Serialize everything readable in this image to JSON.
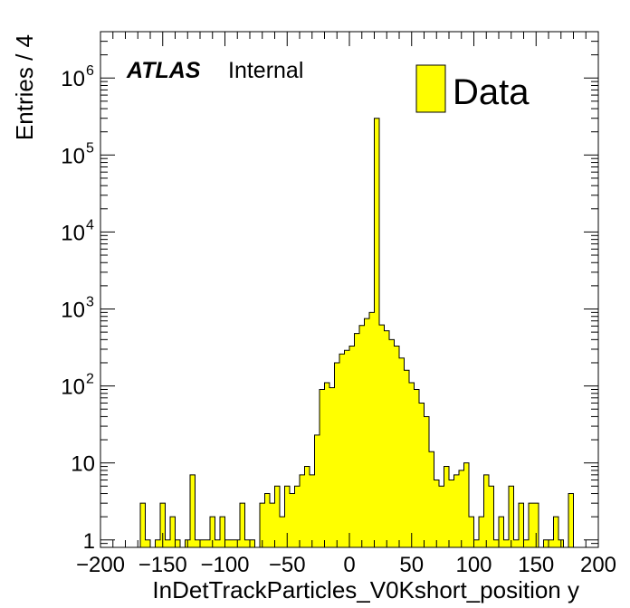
{
  "chart_data": {
    "type": "bar",
    "title": "",
    "xlabel": "InDetTrackParticles_V0Kshort_position y",
    "ylabel": "Entries / 4",
    "xlim": [
      -200,
      200
    ],
    "ylim": [
      0.8,
      4000000
    ],
    "y_scale": "log",
    "bin_width": 4,
    "x_ticks": [
      -200,
      -150,
      -100,
      -50,
      0,
      50,
      100,
      150,
      200
    ],
    "x_tick_labels": [
      "−200",
      "−150",
      "−100",
      "−50",
      "0",
      "50",
      "100",
      "150",
      "200"
    ],
    "y_ticks": [
      1,
      10,
      100,
      1000,
      10000,
      100000,
      1000000
    ],
    "y_tick_labels": [
      {
        "base": "1",
        "exp": ""
      },
      {
        "base": "10",
        "exp": ""
      },
      {
        "base": "10",
        "exp": "2"
      },
      {
        "base": "10",
        "exp": "3"
      },
      {
        "base": "10",
        "exp": "4"
      },
      {
        "base": "10",
        "exp": "5"
      },
      {
        "base": "10",
        "exp": "6"
      }
    ],
    "fill_color": "#ffff00",
    "line_color": "#000000",
    "grid": false,
    "legend_position": "top-right",
    "series": [
      {
        "name": "Data",
        "bins": [
          {
            "x0": -168,
            "y": 3
          },
          {
            "x0": -164,
            "y": 1
          },
          {
            "x0": -156,
            "y": 1
          },
          {
            "x0": -152,
            "y": 3
          },
          {
            "x0": -148,
            "y": 1
          },
          {
            "x0": -144,
            "y": 2
          },
          {
            "x0": -140,
            "y": 1
          },
          {
            "x0": -132,
            "y": 1
          },
          {
            "x0": -128,
            "y": 7
          },
          {
            "x0": -124,
            "y": 1
          },
          {
            "x0": -120,
            "y": 1
          },
          {
            "x0": -116,
            "y": 1
          },
          {
            "x0": -112,
            "y": 2
          },
          {
            "x0": -108,
            "y": 1
          },
          {
            "x0": -104,
            "y": 2
          },
          {
            "x0": -100,
            "y": 1
          },
          {
            "x0": -96,
            "y": 1
          },
          {
            "x0": -92,
            "y": 1
          },
          {
            "x0": -88,
            "y": 3
          },
          {
            "x0": -84,
            "y": 1
          },
          {
            "x0": -80,
            "y": 1
          },
          {
            "x0": -72,
            "y": 3
          },
          {
            "x0": -68,
            "y": 4
          },
          {
            "x0": -64,
            "y": 3
          },
          {
            "x0": -60,
            "y": 5
          },
          {
            "x0": -56,
            "y": 2
          },
          {
            "x0": -52,
            "y": 5
          },
          {
            "x0": -48,
            "y": 4
          },
          {
            "x0": -44,
            "y": 5
          },
          {
            "x0": -40,
            "y": 7
          },
          {
            "x0": -36,
            "y": 9
          },
          {
            "x0": -32,
            "y": 7
          },
          {
            "x0": -28,
            "y": 23
          },
          {
            "x0": -24,
            "y": 90
          },
          {
            "x0": -20,
            "y": 110
          },
          {
            "x0": -16,
            "y": 95
          },
          {
            "x0": -12,
            "y": 200
          },
          {
            "x0": -8,
            "y": 260
          },
          {
            "x0": -4,
            "y": 290
          },
          {
            "x0": 0,
            "y": 330
          },
          {
            "x0": 4,
            "y": 480
          },
          {
            "x0": 8,
            "y": 610
          },
          {
            "x0": 12,
            "y": 750
          },
          {
            "x0": 16,
            "y": 900
          },
          {
            "x0": 20,
            "y": 300000
          },
          {
            "x0": 24,
            "y": 620
          },
          {
            "x0": 28,
            "y": 520
          },
          {
            "x0": 32,
            "y": 400
          },
          {
            "x0": 36,
            "y": 330
          },
          {
            "x0": 40,
            "y": 230
          },
          {
            "x0": 44,
            "y": 160
          },
          {
            "x0": 48,
            "y": 110
          },
          {
            "x0": 52,
            "y": 90
          },
          {
            "x0": 56,
            "y": 60
          },
          {
            "x0": 60,
            "y": 40
          },
          {
            "x0": 64,
            "y": 14
          },
          {
            "x0": 68,
            "y": 6
          },
          {
            "x0": 72,
            "y": 5
          },
          {
            "x0": 76,
            "y": 9
          },
          {
            "x0": 80,
            "y": 6
          },
          {
            "x0": 84,
            "y": 7
          },
          {
            "x0": 88,
            "y": 8
          },
          {
            "x0": 92,
            "y": 10
          },
          {
            "x0": 96,
            "y": 2
          },
          {
            "x0": 100,
            "y": 1
          },
          {
            "x0": 104,
            "y": 2
          },
          {
            "x0": 108,
            "y": 7
          },
          {
            "x0": 112,
            "y": 5
          },
          {
            "x0": 116,
            "y": 1
          },
          {
            "x0": 120,
            "y": 2
          },
          {
            "x0": 124,
            "y": 1
          },
          {
            "x0": 128,
            "y": 5
          },
          {
            "x0": 132,
            "y": 1
          },
          {
            "x0": 136,
            "y": 3
          },
          {
            "x0": 140,
            "y": 1
          },
          {
            "x0": 144,
            "y": 3
          },
          {
            "x0": 148,
            "y": 3
          },
          {
            "x0": 156,
            "y": 1
          },
          {
            "x0": 160,
            "y": 1
          },
          {
            "x0": 164,
            "y": 2
          },
          {
            "x0": 168,
            "y": 1
          },
          {
            "x0": 176,
            "y": 4
          }
        ]
      }
    ]
  },
  "annotation": {
    "experiment": "ATLAS",
    "status": "Internal"
  },
  "legend": {
    "label": "Data"
  }
}
